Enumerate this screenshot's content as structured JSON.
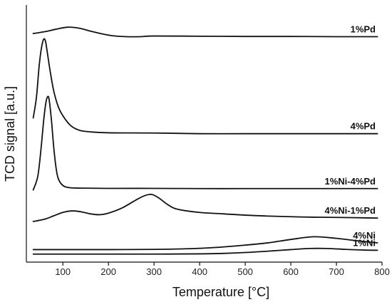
{
  "chart_data": {
    "type": "line",
    "xlabel": "Temperature [°C]",
    "ylabel": "TCD signal [a.u.]",
    "xlim": [
      20,
      800
    ],
    "ylim": [
      0,
      100
    ],
    "x_ticks": [
      100,
      200,
      300,
      400,
      500,
      600,
      700,
      800
    ],
    "grid": false,
    "legend": "labels next to each curve at the right end",
    "series": [
      {
        "name": "1%Pd",
        "points": [
          [
            35,
            96.5
          ],
          [
            60,
            97.3
          ],
          [
            85,
            98.4
          ],
          [
            110,
            99.3
          ],
          [
            135,
            98.9
          ],
          [
            160,
            97.6
          ],
          [
            185,
            96.4
          ],
          [
            210,
            95.5
          ],
          [
            240,
            95.1
          ],
          [
            270,
            95.1
          ],
          [
            300,
            95.4
          ],
          [
            400,
            95.3
          ],
          [
            500,
            95.2
          ],
          [
            600,
            95.2
          ],
          [
            700,
            95.1
          ],
          [
            790,
            95.1
          ]
        ]
      },
      {
        "name": "4%Pd",
        "points": [
          [
            35,
            59
          ],
          [
            42,
            68
          ],
          [
            48,
            82
          ],
          [
            53,
            90
          ],
          [
            58,
            94
          ],
          [
            62,
            93
          ],
          [
            66,
            88
          ],
          [
            72,
            80
          ],
          [
            80,
            71
          ],
          [
            90,
            64
          ],
          [
            100,
            60
          ],
          [
            115,
            56
          ],
          [
            130,
            54
          ],
          [
            150,
            53
          ],
          [
            200,
            52.4
          ],
          [
            300,
            52.3
          ],
          [
            400,
            52
          ],
          [
            500,
            52
          ],
          [
            600,
            52
          ],
          [
            700,
            52
          ],
          [
            790,
            52
          ]
        ]
      },
      {
        "name": "1%Ni-4%Pd",
        "points": [
          [
            35,
            27
          ],
          [
            45,
            33
          ],
          [
            52,
            45
          ],
          [
            58,
            58
          ],
          [
            63,
            66
          ],
          [
            67,
            68.5
          ],
          [
            70,
            67
          ],
          [
            75,
            58
          ],
          [
            80,
            46
          ],
          [
            85,
            37
          ],
          [
            90,
            32
          ],
          [
            100,
            29
          ],
          [
            115,
            28
          ],
          [
            140,
            27.8
          ],
          [
            200,
            27.7
          ],
          [
            300,
            27.7
          ],
          [
            400,
            27.6
          ],
          [
            500,
            27.6
          ],
          [
            600,
            27.6
          ],
          [
            700,
            27.6
          ],
          [
            790,
            27.6
          ]
        ]
      },
      {
        "name": "4%Ni-1%Pd",
        "points": [
          [
            35,
            13
          ],
          [
            60,
            14
          ],
          [
            80,
            15.5
          ],
          [
            100,
            17
          ],
          [
            120,
            17.7
          ],
          [
            140,
            17.3
          ],
          [
            160,
            16.4
          ],
          [
            180,
            16
          ],
          [
            200,
            16.7
          ],
          [
            230,
            19
          ],
          [
            260,
            22.5
          ],
          [
            280,
            24.5
          ],
          [
            295,
            25
          ],
          [
            310,
            23.5
          ],
          [
            330,
            20.5
          ],
          [
            350,
            18.5
          ],
          [
            400,
            17
          ],
          [
            450,
            16.4
          ],
          [
            500,
            15.8
          ],
          [
            550,
            15.4
          ],
          [
            600,
            15.1
          ],
          [
            650,
            14.9
          ],
          [
            700,
            14.8
          ],
          [
            790,
            14.5
          ]
        ]
      },
      {
        "name": "4%Ni",
        "points": [
          [
            35,
            0.5
          ],
          [
            100,
            0.5
          ],
          [
            200,
            0.5
          ],
          [
            300,
            0.6
          ],
          [
            380,
            0.9
          ],
          [
            440,
            1.5
          ],
          [
            500,
            2.5
          ],
          [
            550,
            3.5
          ],
          [
            600,
            5
          ],
          [
            650,
            6.2
          ],
          [
            700,
            5.5
          ],
          [
            750,
            4.3
          ],
          [
            790,
            3.5
          ]
        ]
      },
      {
        "name": "1%Ni",
        "points": [
          [
            35,
            -1.5
          ],
          [
            100,
            -1.5
          ],
          [
            200,
            -1.5
          ],
          [
            300,
            -1.5
          ],
          [
            400,
            -1.4
          ],
          [
            450,
            -1.2
          ],
          [
            500,
            -0.8
          ],
          [
            550,
            -0.2
          ],
          [
            600,
            0.5
          ],
          [
            640,
            1
          ],
          [
            680,
            1
          ],
          [
            720,
            0.6
          ],
          [
            760,
            0.3
          ],
          [
            790,
            0.2
          ]
        ]
      }
    ]
  }
}
